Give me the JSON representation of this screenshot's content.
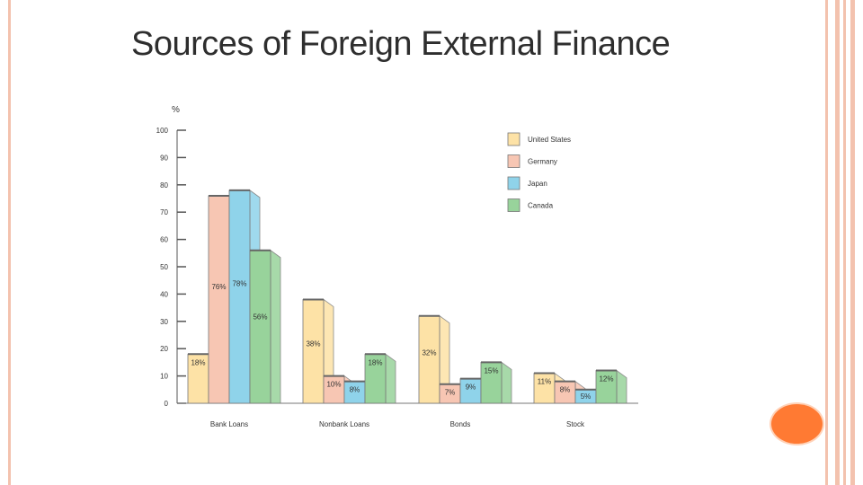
{
  "slide": {
    "title": "Sources of Foreign External Finance",
    "accent_color": "#ff7a33"
  },
  "chart_data": {
    "type": "bar",
    "title": "Sources of Foreign External Finance",
    "ylabel": "%",
    "xlabel": "",
    "ylim": [
      0,
      100
    ],
    "yticks": [
      0,
      10,
      20,
      30,
      40,
      50,
      60,
      70,
      80,
      90,
      100
    ],
    "categories": [
      "Bank Loans",
      "Nonbank Loans",
      "Bonds",
      "Stock"
    ],
    "series": [
      {
        "name": "United States",
        "color": "#fde2a6",
        "values": [
          18,
          38,
          32,
          11
        ],
        "labels": [
          "18%",
          "38%",
          "32%",
          "11%"
        ]
      },
      {
        "name": "Germany",
        "color": "#f7c6b3",
        "values": [
          76,
          10,
          7,
          8
        ],
        "labels": [
          "76%",
          "10%",
          "7%",
          "8%"
        ]
      },
      {
        "name": "Japan",
        "color": "#8fd3ea",
        "values": [
          78,
          8,
          9,
          5
        ],
        "labels": [
          "78%",
          "8%",
          "9%",
          "5%"
        ]
      },
      {
        "name": "Canada",
        "color": "#98d39b",
        "values": [
          56,
          18,
          15,
          12
        ],
        "labels": [
          "56%",
          "18%",
          "15%",
          "12%"
        ]
      }
    ],
    "legend_position": "top-right",
    "grid": false
  }
}
